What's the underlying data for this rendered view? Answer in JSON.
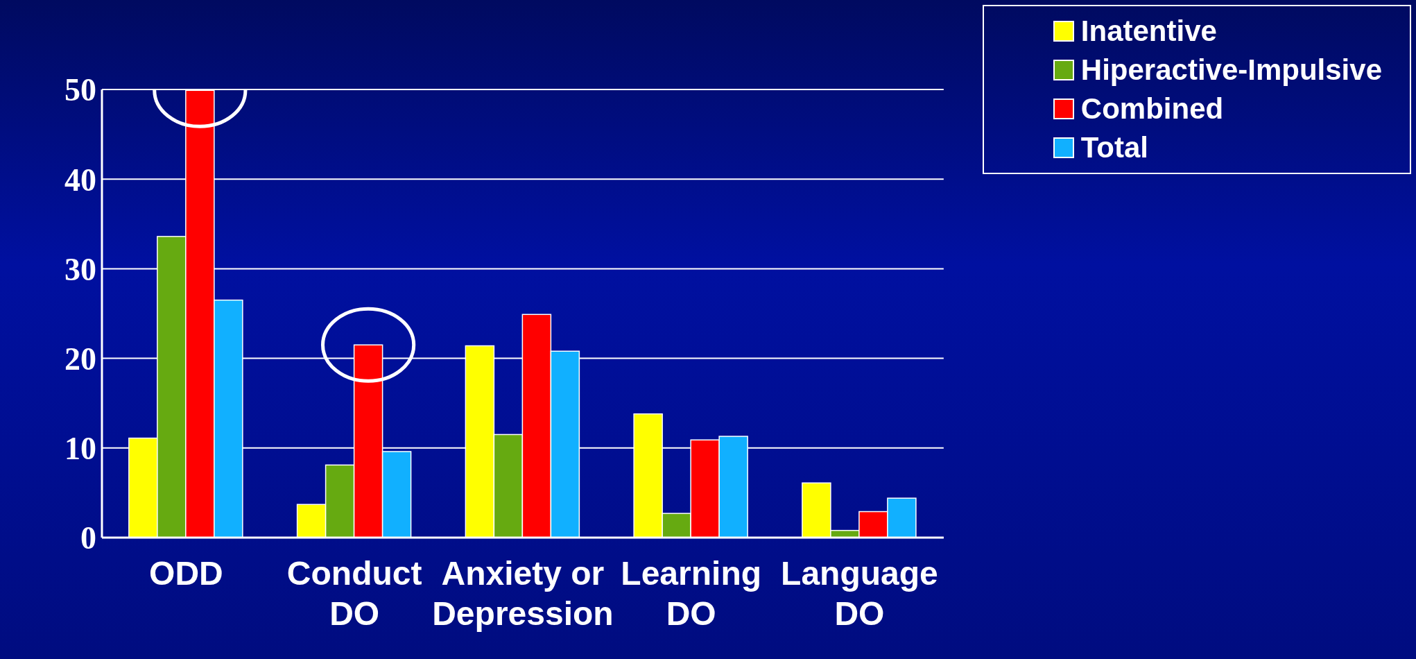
{
  "chart_data": {
    "type": "bar",
    "categories": [
      "ODD",
      "Conduct DO",
      "Anxiety or Depression",
      "Learning DO",
      "Language DO"
    ],
    "series": [
      {
        "name": "Inatentive",
        "color": "#ffff00",
        "values": [
          11.1,
          3.7,
          21.4,
          13.8,
          6.1
        ]
      },
      {
        "name": "Hiperactive-Impulsive",
        "color": "#66aa11",
        "values": [
          33.6,
          8.1,
          11.5,
          2.7,
          0.8
        ]
      },
      {
        "name": "Combined",
        "color": "#ff0000",
        "values": [
          49.9,
          21.5,
          24.9,
          10.9,
          2.9
        ]
      },
      {
        "name": "Total",
        "color": "#11b0ff",
        "values": [
          26.5,
          9.6,
          20.8,
          11.3,
          4.4
        ]
      }
    ],
    "ylim": [
      0,
      50
    ],
    "yticks": [
      0,
      10,
      20,
      30,
      40,
      50
    ],
    "grid": "y",
    "legend": "top right"
  }
}
